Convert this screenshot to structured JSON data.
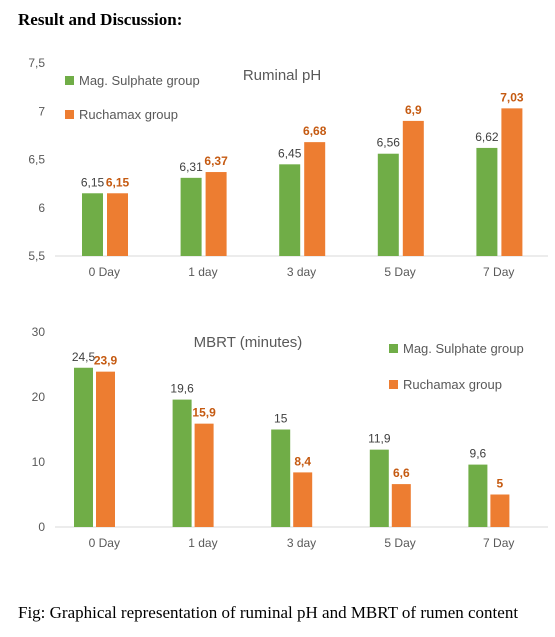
{
  "heading": "Result and Discussion:",
  "caption": "Fig: Graphical representation of ruminal pH and MBRT of rumen content",
  "colors": {
    "series1": "#70ad47",
    "series2": "#ed7d31",
    "axis": "#d9d9d9",
    "text": "#595959",
    "label2": "#c55a11"
  },
  "chart_data": [
    {
      "type": "bar",
      "title": "Ruminal pH",
      "categories": [
        "0 Day",
        "1 day",
        "3 day",
        "5 Day",
        "7 Day"
      ],
      "series": [
        {
          "name": "Mag. Sulphate  group",
          "values": [
            6.15,
            6.31,
            6.45,
            6.56,
            6.62
          ],
          "labels": [
            "6,15",
            "6,31",
            "6,45",
            "6,56",
            "6,62"
          ]
        },
        {
          "name": "Ruchamax group",
          "values": [
            6.15,
            6.37,
            6.68,
            6.9,
            7.03
          ],
          "labels": [
            "6,15",
            "6,37",
            "6,68",
            "6,9",
            "7,03"
          ]
        }
      ],
      "ylim": [
        5.5,
        7.5
      ],
      "yticks": [
        "5,5",
        "6",
        "6,5",
        "7",
        "7,5"
      ],
      "ytick_values": [
        5.5,
        6,
        6.5,
        7,
        7.5
      ],
      "legend_position": "top-left",
      "grid": false
    },
    {
      "type": "bar",
      "title": "MBRT (minutes)",
      "categories": [
        "0 Day",
        "1 day",
        "3 day",
        "5 Day",
        "7 Day"
      ],
      "series": [
        {
          "name": "Mag. Sulphate  group",
          "values": [
            24.5,
            19.6,
            15,
            11.9,
            9.6
          ],
          "labels": [
            "24,5",
            "19,6",
            "15",
            "11,9",
            "9,6"
          ]
        },
        {
          "name": "Ruchamax group",
          "values": [
            23.9,
            15.9,
            8.4,
            6.6,
            5
          ],
          "labels": [
            "23,9",
            "15,9",
            "8,4",
            "6,6",
            "5"
          ]
        }
      ],
      "ylim": [
        0,
        30
      ],
      "yticks": [
        "0",
        "10",
        "20",
        "30"
      ],
      "ytick_values": [
        0,
        10,
        20,
        30
      ],
      "legend_position": "top-right",
      "grid": false
    }
  ]
}
